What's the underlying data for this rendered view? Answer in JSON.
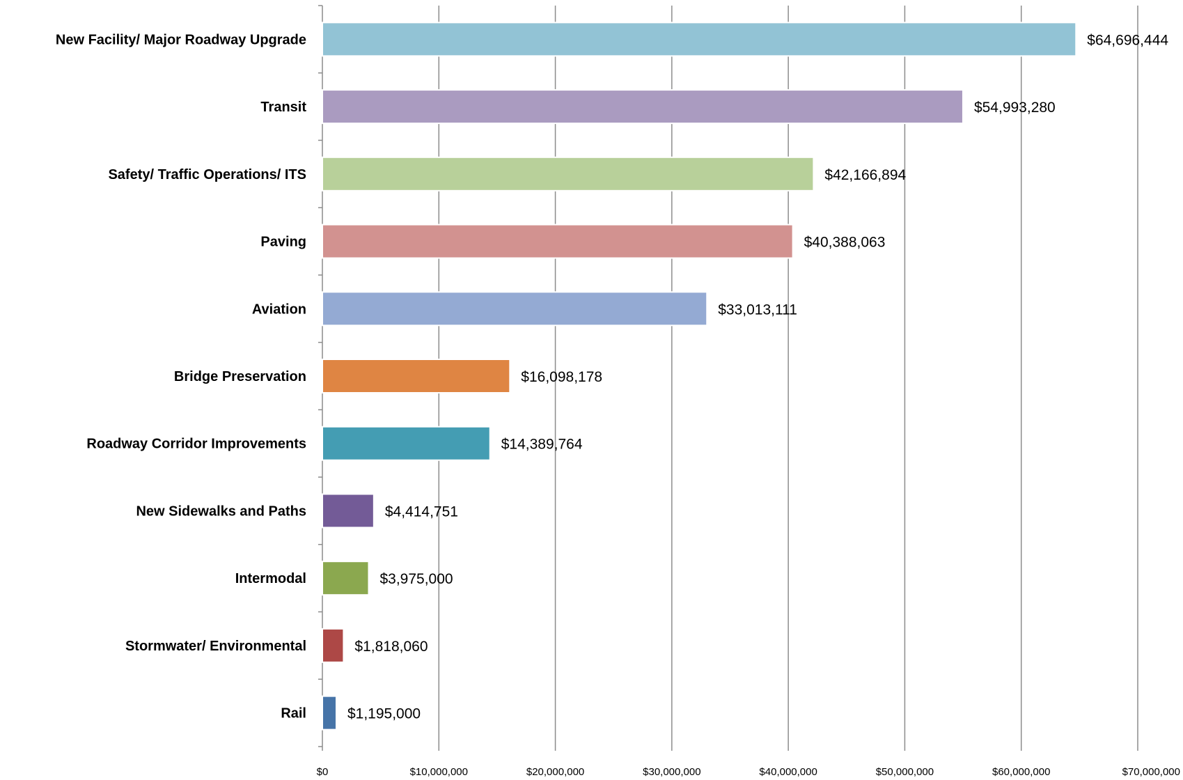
{
  "chart_data": {
    "type": "bar",
    "orientation": "horizontal",
    "title": "",
    "xlabel": "",
    "ylabel": "",
    "xlim": [
      0,
      70000000
    ],
    "x_ticks": [
      0,
      10000000,
      20000000,
      30000000,
      40000000,
      50000000,
      60000000,
      70000000
    ],
    "x_tick_labels": [
      "$0",
      "$10,000,000",
      "$20,000,000",
      "$30,000,000",
      "$40,000,000",
      "$50,000,000",
      "$60,000,000",
      "$70,000,000"
    ],
    "grid": "vertical",
    "legend": "none",
    "categories": [
      "New Facility/ Major Roadway Upgrade",
      "Transit",
      "Safety/ Traffic Operations/ ITS",
      "Paving",
      "Aviation",
      "Bridge Preservation",
      "Roadway Corridor Improvements",
      "New Sidewalks and Paths",
      "Intermodal",
      "Stormwater/ Environmental",
      "Rail"
    ],
    "values": [
      64696444,
      54993280,
      42166894,
      40388063,
      33013111,
      16098178,
      14389764,
      4414751,
      3975000,
      1818060,
      1195000
    ],
    "value_labels": [
      "$64,696,444",
      "$54,993,280",
      "$42,166,894",
      "$40,388,063",
      "$33,013,111",
      "$16,098,178",
      "$14,389,764",
      "$4,414,751",
      "$3,975,000",
      "$1,818,060",
      "$1,195,000"
    ],
    "colors": [
      "#92c3d5",
      "#aa9bc0",
      "#b8d09a",
      "#d29290",
      "#94aad3",
      "#df8543",
      "#449db3",
      "#735b97",
      "#8ba84f",
      "#ad4846",
      "#4674a8"
    ]
  }
}
